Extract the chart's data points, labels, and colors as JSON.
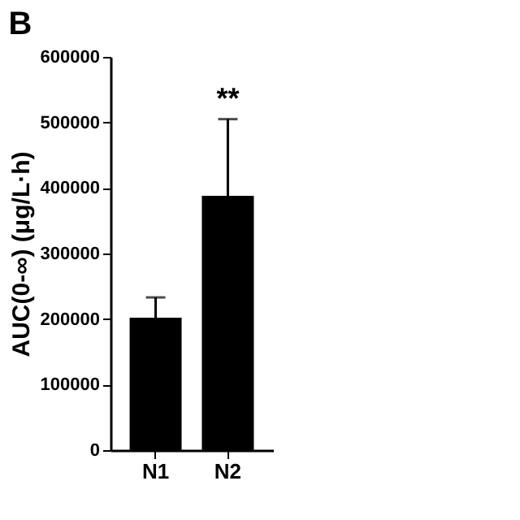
{
  "chart_data": {
    "type": "bar",
    "title": "B",
    "ylabel": "AUC(0-∞) (μg/L·h)",
    "categories": [
      "N1",
      "N2"
    ],
    "values": [
      202000,
      388000
    ],
    "errors": [
      31000,
      117000
    ],
    "color": "#000000",
    "ylim": [
      0,
      600000
    ],
    "yticks": [
      0,
      100000,
      200000,
      300000,
      400000,
      500000,
      600000
    ],
    "grid": false,
    "annotations": [
      {
        "text": "**",
        "x": "N2",
        "y": 505000
      }
    ]
  }
}
